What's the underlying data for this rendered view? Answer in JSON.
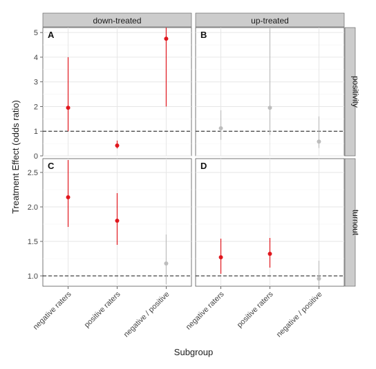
{
  "chart_data": {
    "type": "scatter",
    "ylabel": "Treatment Effect (odds ratio)",
    "xlabel": "Subgroup",
    "categories": [
      "negative raters",
      "positive raters",
      "negative / positive"
    ],
    "columns": [
      "down-treated",
      "up-treated"
    ],
    "rows": [
      {
        "label": "positivity",
        "ylim": [
          0,
          5.2
        ],
        "yticks": [
          "0",
          "1",
          "2",
          "3",
          "4",
          "5"
        ],
        "reference": 1
      },
      {
        "label": "turnout",
        "ylim": [
          0.85,
          2.7
        ],
        "yticks": [
          "1.0",
          "1.5",
          "2.0",
          "2.5"
        ],
        "reference": 1
      }
    ],
    "colors": {
      "significant": "#e0161d",
      "not_significant": "#bdbdbd"
    },
    "panels": [
      {
        "tag": "A",
        "row": 0,
        "col": 0,
        "points": [
          {
            "category": "negative raters",
            "estimate": 1.95,
            "lower": 1.0,
            "upper": 4.0,
            "significant": true
          },
          {
            "category": "positive raters",
            "estimate": 0.42,
            "lower": 0.3,
            "upper": 0.62,
            "significant": true
          },
          {
            "category": "negative / positive",
            "estimate": 4.75,
            "lower": 2.0,
            "upper": 5.2,
            "significant": true
          }
        ]
      },
      {
        "tag": "B",
        "row": 0,
        "col": 1,
        "points": [
          {
            "category": "negative raters",
            "estimate": 1.12,
            "lower": 0.65,
            "upper": 1.85,
            "significant": false
          },
          {
            "category": "positive raters",
            "estimate": 1.95,
            "lower": 0.85,
            "upper": 5.2,
            "significant": false
          },
          {
            "category": "negative / positive",
            "estimate": 0.58,
            "lower": 0.32,
            "upper": 1.6,
            "significant": false
          }
        ]
      },
      {
        "tag": "C",
        "row": 1,
        "col": 0,
        "points": [
          {
            "category": "negative raters",
            "estimate": 2.14,
            "lower": 1.71,
            "upper": 2.68,
            "significant": true
          },
          {
            "category": "positive raters",
            "estimate": 1.8,
            "lower": 1.45,
            "upper": 2.2,
            "significant": true
          },
          {
            "category": "negative / positive",
            "estimate": 1.18,
            "lower": 0.88,
            "upper": 1.6,
            "significant": false
          }
        ]
      },
      {
        "tag": "D",
        "row": 1,
        "col": 1,
        "points": [
          {
            "category": "negative raters",
            "estimate": 1.27,
            "lower": 1.03,
            "upper": 1.54,
            "significant": true
          },
          {
            "category": "positive raters",
            "estimate": 1.32,
            "lower": 1.12,
            "upper": 1.55,
            "significant": true
          },
          {
            "category": "negative / positive",
            "estimate": 0.96,
            "lower": 0.85,
            "upper": 1.22,
            "significant": false
          }
        ]
      }
    ]
  }
}
